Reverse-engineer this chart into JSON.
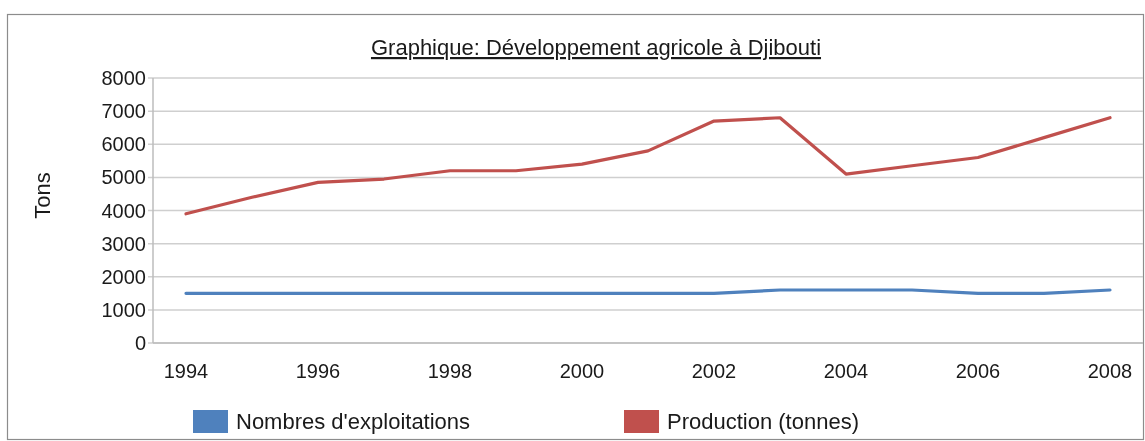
{
  "chart_data": {
    "type": "line",
    "title": "Graphique: Développement agricole à Djibouti",
    "ylabel": "Tons",
    "x": [
      1994,
      1995,
      1996,
      1997,
      1998,
      1999,
      2000,
      2001,
      2002,
      2003,
      2004,
      2005,
      2006,
      2007,
      2008
    ],
    "xlim": [
      1993.5,
      2008.5
    ],
    "xticks": [
      1994,
      1996,
      1998,
      2000,
      2002,
      2004,
      2006,
      2008
    ],
    "ylim": [
      0,
      8000
    ],
    "yticks": [
      0,
      1000,
      2000,
      3000,
      4000,
      5000,
      6000,
      7000,
      8000
    ],
    "grid": "y",
    "legend": "bottom",
    "series": [
      {
        "name": "Nombres d'exploitations",
        "color": "#4f81bd",
        "values": [
          1500,
          1500,
          1500,
          1500,
          1500,
          1500,
          1500,
          1500,
          1500,
          1600,
          1600,
          1600,
          1500,
          1500,
          1600
        ]
      },
      {
        "name": "Production (tonnes)",
        "color": "#c0504d",
        "values": [
          3900,
          4400,
          4850,
          4950,
          5200,
          5200,
          5400,
          5800,
          6700,
          6800,
          5100,
          5350,
          5600,
          6200,
          6800
        ]
      }
    ]
  }
}
